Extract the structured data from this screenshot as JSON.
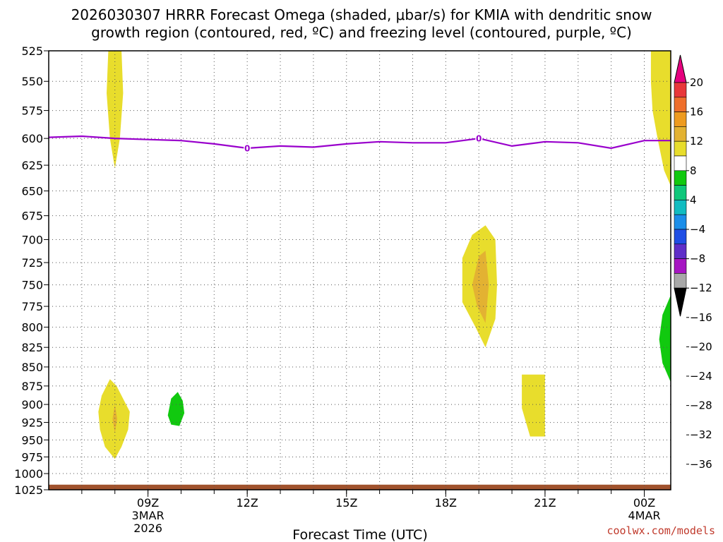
{
  "chart_data": {
    "type": "heatmap",
    "title_line1": "2026030307 HRRR Forecast Omega (shaded, μbar/s) for KMIA with dendritic snow",
    "title_line2": "growth region (contoured, red, ºC) and freezing level (contoured, purple, ºC)",
    "xlabel": "Forecast Time (UTC)",
    "credit": "coolwx.com/models",
    "x_range_hours": [
      6.0,
      24.8
    ],
    "y_range_mb": [
      525,
      1025
    ],
    "pressure_levels": [
      525,
      550,
      575,
      600,
      625,
      650,
      675,
      700,
      725,
      750,
      775,
      800,
      825,
      850,
      875,
      900,
      925,
      950,
      975,
      1000,
      1025
    ],
    "y_tick_labels": [
      "525",
      "550",
      "575",
      "600",
      "625",
      "650",
      "675",
      "700",
      "725",
      "750",
      "775",
      "800",
      "825",
      "850",
      "875",
      "900",
      "925",
      "950",
      "975",
      "1000",
      "1025"
    ],
    "x_ticks": [
      {
        "hour": 9,
        "label": "09Z",
        "sub1": "3MAR",
        "sub2": "2026"
      },
      {
        "hour": 12,
        "label": "12Z",
        "sub1": "",
        "sub2": ""
      },
      {
        "hour": 15,
        "label": "15Z",
        "sub1": "",
        "sub2": ""
      },
      {
        "hour": 18,
        "label": "18Z",
        "sub1": "",
        "sub2": ""
      },
      {
        "hour": 21,
        "label": "21Z",
        "sub1": "",
        "sub2": ""
      },
      {
        "hour": 24,
        "label": "00Z",
        "sub1": "4MAR",
        "sub2": ""
      }
    ],
    "freezing_level": {
      "value_label": "0",
      "color": "#9900cc",
      "points": [
        [
          6.0,
          599
        ],
        [
          7.0,
          598
        ],
        [
          8.0,
          600
        ],
        [
          9.0,
          601
        ],
        [
          10.0,
          602
        ],
        [
          11.0,
          605
        ],
        [
          12.0,
          609
        ],
        [
          13.0,
          607
        ],
        [
          14.0,
          608
        ],
        [
          15.0,
          605
        ],
        [
          16.0,
          603
        ],
        [
          17.0,
          604
        ],
        [
          18.0,
          604
        ],
        [
          19.0,
          600
        ],
        [
          20.0,
          607
        ],
        [
          21.0,
          603
        ],
        [
          22.0,
          604
        ],
        [
          23.0,
          609
        ],
        [
          24.0,
          602
        ],
        [
          24.8,
          602
        ]
      ],
      "label_positions": [
        [
          12.0,
          609
        ],
        [
          19.0,
          600
        ]
      ]
    },
    "colorbar": {
      "labels": [
        "20",
        "16",
        "12",
        "8",
        "4",
        "−4",
        "−8",
        "−12",
        "−16",
        "−20",
        "−24",
        "−28",
        "−32",
        "−36"
      ],
      "colors": [
        "#e6007e",
        "#e8373a",
        "#ef6f2b",
        "#ee9b1f",
        "#e3b232",
        "#e8dd2c",
        "#ffffff",
        "#11c90f",
        "#0fc77a",
        "#11bcc1",
        "#1b8ee9",
        "#1f4ee5",
        "#5f2ec8",
        "#a615c2",
        "#a8a8a8",
        "#000000"
      ]
    },
    "shaded_regions": [
      {
        "name": "omega-positive-upper-left",
        "range": "4 to 8",
        "color": "#e8dd2c",
        "points": [
          [
            7.8,
            525
          ],
          [
            8.2,
            525
          ],
          [
            8.25,
            560
          ],
          [
            8.15,
            600
          ],
          [
            8.0,
            628
          ],
          [
            7.85,
            600
          ],
          [
            7.75,
            560
          ]
        ]
      },
      {
        "name": "omega-positive-upper-right",
        "range": "4 to 8",
        "color": "#e8dd2c",
        "points": [
          [
            24.2,
            525
          ],
          [
            24.8,
            525
          ],
          [
            24.8,
            645
          ],
          [
            24.6,
            630
          ],
          [
            24.4,
            600
          ],
          [
            24.25,
            575
          ],
          [
            24.2,
            550
          ]
        ]
      },
      {
        "name": "omega-positive-18z",
        "range": "4 to 8",
        "color": "#e8dd2c",
        "points": [
          [
            18.5,
            720
          ],
          [
            18.8,
            695
          ],
          [
            19.2,
            685
          ],
          [
            19.5,
            700
          ],
          [
            19.55,
            750
          ],
          [
            19.5,
            790
          ],
          [
            19.2,
            825
          ],
          [
            18.9,
            800
          ],
          [
            18.5,
            770
          ]
        ]
      },
      {
        "name": "omega-positive-18z-core",
        "range": "8 to 12",
        "color": "#e3b232",
        "points": [
          [
            18.8,
            750
          ],
          [
            19.0,
            718
          ],
          [
            19.2,
            712
          ],
          [
            19.3,
            750
          ],
          [
            19.2,
            795
          ],
          [
            18.95,
            775
          ]
        ]
      },
      {
        "name": "omega-positive-lower-left",
        "range": "4 to 8",
        "color": "#e8dd2c",
        "points": [
          [
            7.5,
            910
          ],
          [
            7.6,
            888
          ],
          [
            7.85,
            866
          ],
          [
            8.05,
            875
          ],
          [
            8.45,
            910
          ],
          [
            8.4,
            935
          ],
          [
            8.2,
            960
          ],
          [
            8.0,
            978
          ],
          [
            7.7,
            960
          ],
          [
            7.55,
            935
          ]
        ]
      },
      {
        "name": "omega-positive-lower-left-core",
        "range": "8 to 12",
        "color": "#e3b232",
        "points": [
          [
            7.93,
            920
          ],
          [
            8.0,
            900
          ],
          [
            8.07,
            920
          ],
          [
            8.0,
            940
          ]
        ]
      },
      {
        "name": "omega-positive-20z",
        "range": "4 to 8",
        "color": "#e8dd2c",
        "points": [
          [
            20.3,
            860
          ],
          [
            21.0,
            860
          ],
          [
            21.0,
            945
          ],
          [
            20.55,
            945
          ],
          [
            20.3,
            905
          ],
          [
            20.3,
            880
          ]
        ]
      },
      {
        "name": "omega-negative-10z",
        "range": "-8 to -4",
        "color": "#11c90f",
        "points": [
          [
            9.6,
            915
          ],
          [
            9.7,
            892
          ],
          [
            9.9,
            883
          ],
          [
            10.05,
            895
          ],
          [
            10.1,
            912
          ],
          [
            9.95,
            930
          ],
          [
            9.7,
            928
          ]
        ]
      },
      {
        "name": "omega-negative-right",
        "range": "-8 to -4",
        "color": "#11c90f",
        "points": [
          [
            24.8,
            762
          ],
          [
            24.55,
            785
          ],
          [
            24.45,
            815
          ],
          [
            24.55,
            845
          ],
          [
            24.8,
            870
          ]
        ]
      },
      {
        "name": "surface-ground",
        "range": "below ground",
        "color": "#a0522d",
        "points": [
          [
            6.0,
            1017
          ],
          [
            24.8,
            1017
          ],
          [
            24.8,
            1026
          ],
          [
            6.0,
            1026
          ]
        ]
      }
    ]
  }
}
